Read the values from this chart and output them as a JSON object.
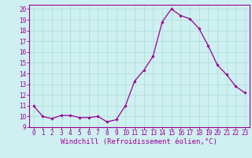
{
  "x": [
    0,
    1,
    2,
    3,
    4,
    5,
    6,
    7,
    8,
    9,
    10,
    11,
    12,
    13,
    14,
    15,
    16,
    17,
    18,
    19,
    20,
    21,
    22,
    23
  ],
  "y": [
    11,
    10,
    9.8,
    10.1,
    10.1,
    9.9,
    9.9,
    10.0,
    9.5,
    9.7,
    11.0,
    13.3,
    14.3,
    15.6,
    18.8,
    20.0,
    19.4,
    19.1,
    18.2,
    16.6,
    14.8,
    13.9,
    12.8,
    12.2
  ],
  "line_color": "#990099",
  "marker": "D",
  "marker_size": 1.8,
  "line_width": 0.9,
  "xlabel": "Windchill (Refroidissement éolien,°C)",
  "xlabel_fontsize": 6.5,
  "ytick_labels": [
    "9",
    "10",
    "11",
    "12",
    "13",
    "14",
    "15",
    "16",
    "17",
    "18",
    "19",
    "20"
  ],
  "ytick_values": [
    9,
    10,
    11,
    12,
    13,
    14,
    15,
    16,
    17,
    18,
    19,
    20
  ],
  "xlim": [
    -0.5,
    23.5
  ],
  "ylim": [
    9,
    20.4
  ],
  "bg_color": "#cff0f0",
  "grid_color": "#b0dede",
  "tick_fontsize": 5.5,
  "spine_color": "#990099"
}
